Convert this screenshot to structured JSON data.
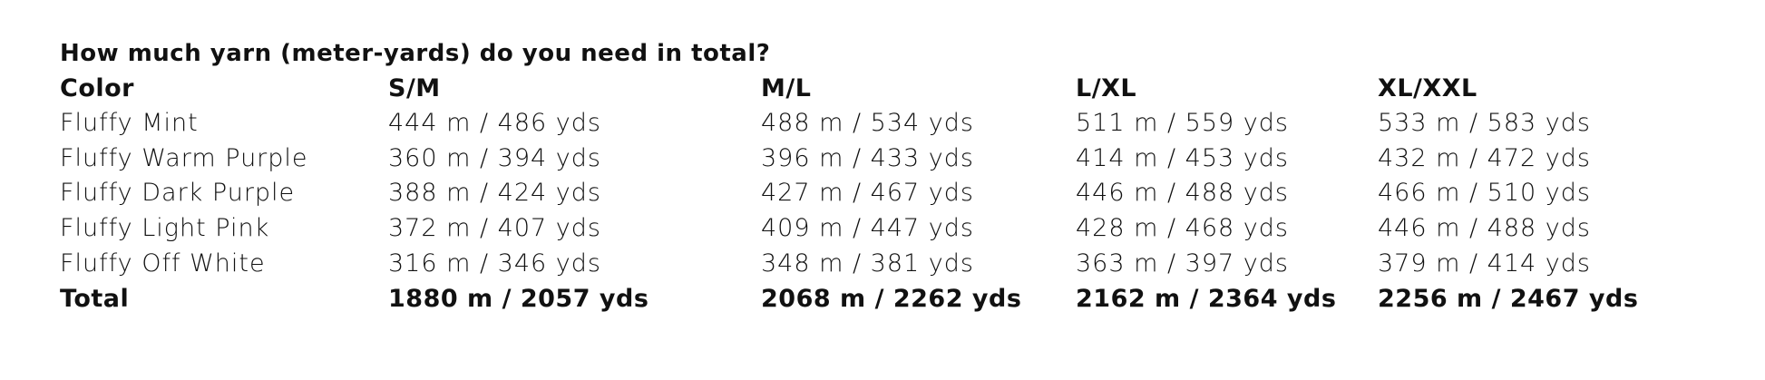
{
  "title": "How much yarn (meter-yards) do you need in total?",
  "table": {
    "headers": [
      "Color",
      "S/M",
      "M/L",
      "L/XL",
      "XL/XXL"
    ],
    "rows": [
      [
        "Fluffy Mint",
        "444 m / 486 yds",
        "488 m / 534 yds",
        "511 m / 559 yds",
        "533 m / 583 yds"
      ],
      [
        "Fluffy Warm Purple",
        "360 m / 394 yds",
        "396 m / 433 yds",
        "414 m / 453 yds",
        "432 m / 472 yds"
      ],
      [
        "Fluffy Dark Purple",
        "388 m / 424 yds",
        "427 m / 467 yds",
        "446 m / 488 yds",
        "466 m / 510 yds"
      ],
      [
        "Fluffy Light Pink",
        "372 m / 407 yds",
        "409 m / 447 yds",
        "428 m / 468 yds",
        "446 m / 488 yds"
      ],
      [
        "Fluffy Off White",
        "316 m / 346 yds",
        "348 m / 381 yds",
        "363 m / 397 yds",
        "379 m / 414 yds"
      ]
    ],
    "total": [
      "Total",
      "1880 m / 2057 yds",
      "2068 m / 2262 yds",
      "2162 m / 2364 yds",
      "2256 m / 2467 yds"
    ]
  }
}
